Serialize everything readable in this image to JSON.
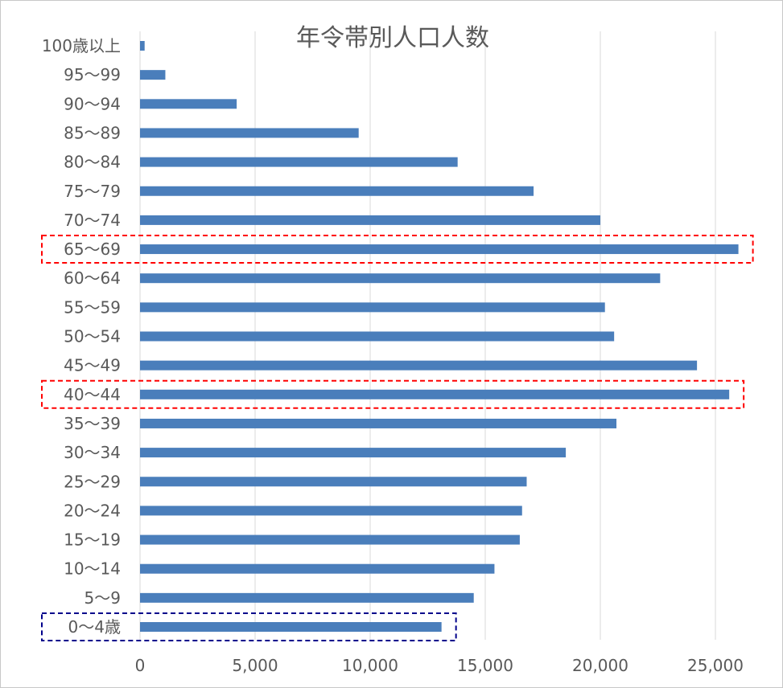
{
  "chart_data": {
    "type": "bar",
    "orientation": "horizontal",
    "title": "年令帯別人口人数",
    "categories": [
      "100歳以上",
      "95～99",
      "90～94",
      "85～89",
      "80～84",
      "75～79",
      "70～74",
      "65～69",
      "60～64",
      "55～59",
      "50～54",
      "45～49",
      "40～44",
      "35～39",
      "30～34",
      "25～29",
      "20～24",
      "15～19",
      "10～14",
      "5～9",
      "0～4歳"
    ],
    "values": [
      200,
      1100,
      4200,
      9500,
      13800,
      17100,
      20000,
      26000,
      22600,
      20200,
      20600,
      24200,
      25600,
      20700,
      18500,
      16800,
      16600,
      16500,
      15400,
      14500,
      13100
    ],
    "xlim": [
      0,
      26000
    ],
    "xticks": [
      "0",
      "5,000",
      "10,000",
      "15,000",
      "20,000",
      "25,000"
    ],
    "grid": true,
    "bar_color": "#4a7ebb",
    "highlights": [
      {
        "category": "65～69",
        "color": "#ff0000",
        "style": "dashed"
      },
      {
        "category": "40～44",
        "color": "#ff0000",
        "style": "dashed"
      },
      {
        "category": "0～4歳",
        "color": "#00008b",
        "style": "dashed"
      }
    ]
  }
}
